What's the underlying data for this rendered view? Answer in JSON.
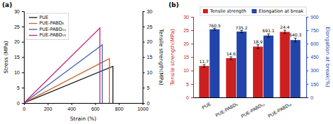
{
  "chart_data": [
    {
      "type": "line",
      "title": "(a)",
      "x_label": "Strain (%)",
      "y_label": "Stress (MPa)",
      "y2_label": "Tensile strength(MPa)",
      "xlim": [
        0,
        1000
      ],
      "xticks": [
        0,
        200,
        400,
        600,
        800,
        1000
      ],
      "ylim": [
        0,
        30
      ],
      "yticks": [
        0,
        5,
        10,
        15,
        20,
        25,
        30
      ],
      "y2lim": [
        0,
        30
      ],
      "y2ticks": [
        0,
        5,
        10,
        15,
        20,
        25,
        30
      ],
      "legend": "top-left",
      "series": [
        {
          "name": "PUE",
          "color": "#1a1a1a",
          "x": [
            0,
            750,
            750
          ],
          "values": [
            0,
            12.0,
            0
          ]
        },
        {
          "name": "PUE-PABD₅",
          "color": "#d4622a",
          "x": [
            0,
            720,
            720
          ],
          "values": [
            0,
            14.5,
            0
          ]
        },
        {
          "name": "PUE-PABD₁₀",
          "color": "#3a5faa",
          "x": [
            0,
            660,
            660
          ],
          "values": [
            0,
            19.0,
            0
          ]
        },
        {
          "name": "PUE-PABD₁₅",
          "color": "#c02878",
          "x": [
            0,
            640,
            640
          ],
          "values": [
            0,
            24.5,
            0
          ]
        }
      ]
    },
    {
      "type": "bar",
      "title": "(b)",
      "categories": [
        "PUE",
        "PUE-PABD₅",
        "PUE-PABD₁₀",
        "PUE-PABD₁₅"
      ],
      "y_label": "Tensile strength(MPa)",
      "y2_label": "Elongation at break(%)",
      "ylim": [
        0,
        30
      ],
      "yticks": [
        0,
        5,
        10,
        15,
        20,
        25,
        30
      ],
      "y2lim": [
        0,
        900
      ],
      "y2ticks": [
        0,
        150,
        300,
        450,
        600,
        750,
        900
      ],
      "legend": "top-right",
      "data_labels": true,
      "series": [
        {
          "name": "Tensile strength",
          "color": "#cc2020",
          "values": [
            11.7,
            14.6,
            18.9,
            24.4
          ],
          "errors": [
            0.5,
            0.5,
            0.7,
            0.6
          ]
        },
        {
          "name": "Elongation at break",
          "color": "#2244aa",
          "axis": "y2",
          "values": [
            760.5,
            735.2,
            691.1,
            640.3
          ],
          "errors": [
            10,
            12,
            18,
            22
          ]
        }
      ]
    }
  ]
}
